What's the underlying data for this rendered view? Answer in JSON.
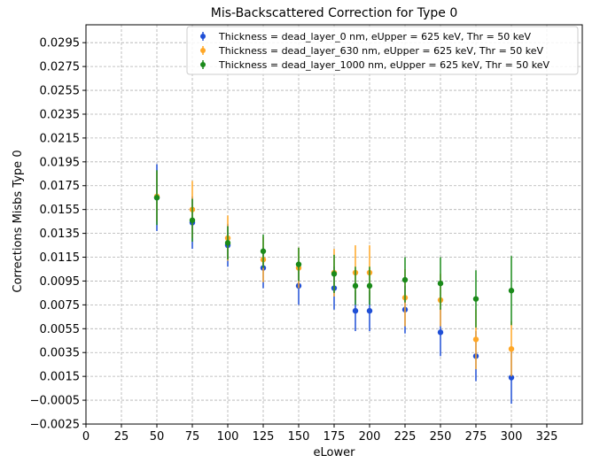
{
  "chart_data": {
    "type": "scatter",
    "title": "Mis-Backscattered Correction for Type 0",
    "xlabel": "eLower",
    "ylabel": "Corrections Misbs Type 0",
    "xlim": [
      0,
      350
    ],
    "ylim": [
      -0.0025,
      0.031
    ],
    "xticks": [
      0,
      25,
      50,
      75,
      100,
      125,
      150,
      175,
      200,
      225,
      250,
      275,
      300,
      325
    ],
    "xtick_labels": [
      "0",
      "25",
      "50",
      "75",
      "100",
      "125",
      "150",
      "175",
      "200",
      "225",
      "250",
      "275",
      "300",
      "325"
    ],
    "yticks": [
      -0.0025,
      -0.0005,
      0.0015,
      0.0035,
      0.0055,
      0.0075,
      0.0095,
      0.0115,
      0.0135,
      0.0155,
      0.0175,
      0.0195,
      0.0215,
      0.0235,
      0.0255,
      0.0275,
      0.0295
    ],
    "ytick_labels": [
      "−0.0025",
      "−0.0005",
      "0.0015",
      "0.0035",
      "0.0055",
      "0.0075",
      "0.0095",
      "0.0115",
      "0.0135",
      "0.0155",
      "0.0175",
      "0.0195",
      "0.0215",
      "0.0235",
      "0.0255",
      "0.0275",
      "0.0295"
    ],
    "grid": true,
    "legend_position": "top-right",
    "series": [
      {
        "name": "Thickness = dead_layer_0 nm, eUpper = 625 keV, Thr = 50 keV",
        "color": "#1f4fd6",
        "x": [
          50,
          75,
          100,
          125,
          150,
          175,
          190,
          200,
          225,
          250,
          275,
          300
        ],
        "y": [
          0.0165,
          0.0144,
          0.0125,
          0.0106,
          0.0091,
          0.0089,
          0.007,
          0.007,
          0.0071,
          0.0052,
          0.0032,
          0.0014
        ],
        "yerr": [
          0.0028,
          0.0022,
          0.0018,
          0.0017,
          0.0016,
          0.0018,
          0.0017,
          0.0017,
          0.002,
          0.002,
          0.0021,
          0.0022
        ]
      },
      {
        "name": "Thickness = dead_layer_630 nm, eUpper = 625 keV, Thr = 50 keV",
        "color": "#ffa726",
        "x": [
          50,
          75,
          100,
          125,
          150,
          175,
          190,
          200,
          225,
          250,
          275,
          300
        ],
        "y": [
          0.0166,
          0.0155,
          0.0131,
          0.0113,
          0.0106,
          0.0102,
          0.0102,
          0.0102,
          0.0081,
          0.0079,
          0.0046,
          0.0038
        ],
        "yerr": [
          0.0021,
          0.0024,
          0.0019,
          0.0019,
          0.0017,
          0.002,
          0.0023,
          0.0023,
          0.0024,
          0.0022,
          0.0025,
          0.0023
        ]
      },
      {
        "name": "Thickness = dead_layer_1000 nm, eUpper = 625 keV, Thr = 50 keV",
        "color": "#1a8a1a",
        "x": [
          50,
          75,
          100,
          125,
          150,
          175,
          190,
          200,
          225,
          250,
          275,
          300
        ],
        "y": [
          0.0165,
          0.0146,
          0.0127,
          0.012,
          0.0109,
          0.0101,
          0.0091,
          0.0091,
          0.0096,
          0.0093,
          0.008,
          0.0087
        ],
        "yerr": [
          0.0023,
          0.0018,
          0.0014,
          0.0014,
          0.0014,
          0.0016,
          0.0016,
          0.0016,
          0.0019,
          0.0022,
          0.0024,
          0.0029
        ]
      }
    ]
  }
}
